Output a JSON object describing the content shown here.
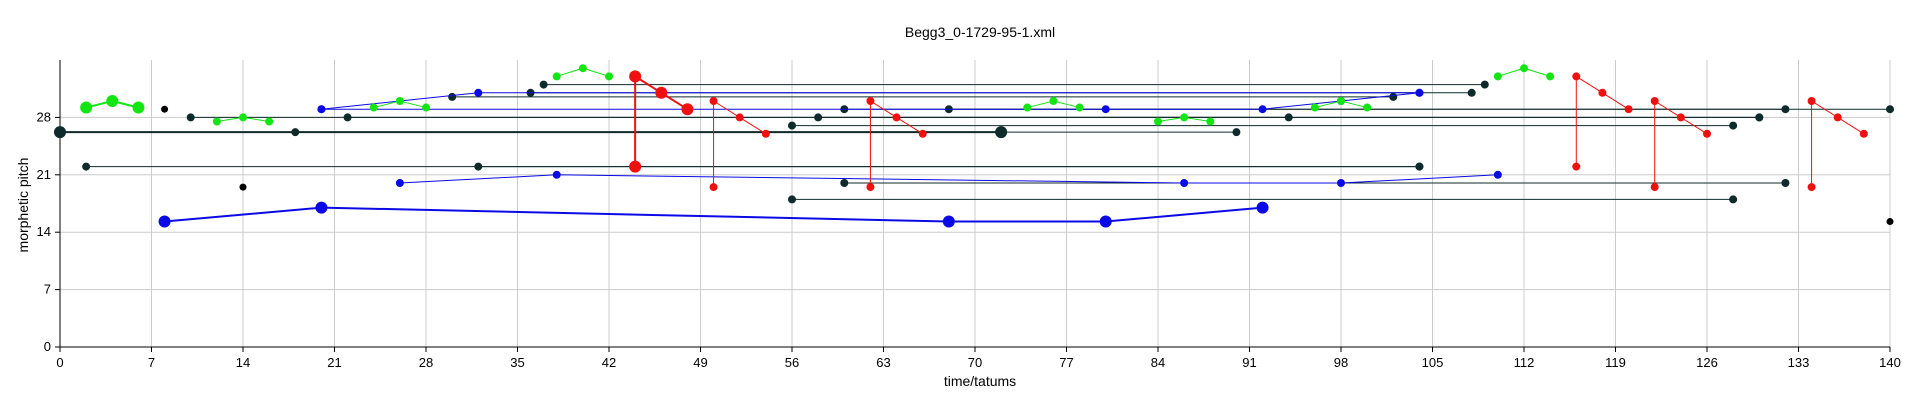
{
  "chart_data": {
    "type": "scatter",
    "title": "Begg3_0-1729-95-1.xml",
    "xlabel": "time/tatums",
    "ylabel": "morphetic pitch",
    "xlim": [
      0,
      140
    ],
    "ylim": [
      0,
      35
    ],
    "xticks": [
      0,
      7,
      14,
      21,
      28,
      35,
      42,
      49,
      56,
      63,
      70,
      77,
      84,
      91,
      98,
      105,
      112,
      119,
      126,
      133,
      140
    ],
    "yticks": [
      0,
      7,
      14,
      21,
      28
    ],
    "grid": true,
    "colors": {
      "dark": "#0e2a2a",
      "black": "#000000",
      "blue": "#0a0ae6",
      "green": "#12e612",
      "red": "#f01010"
    },
    "dark_segments": [
      {
        "x1": 0,
        "y1": 26.2,
        "x2": 72,
        "y2": 26.2,
        "size": "large"
      },
      {
        "x1": 2,
        "y1": 22,
        "x2": 104,
        "y2": 22,
        "size": "small"
      },
      {
        "x1": 10,
        "y1": 28,
        "x2": 130,
        "y2": 28,
        "size": "small"
      },
      {
        "x1": 18,
        "y1": 26.2,
        "x2": 90,
        "y2": 26.2,
        "size": "small"
      },
      {
        "x1": 22,
        "y1": 28,
        "x2": 94,
        "y2": 28,
        "size": "small"
      },
      {
        "x1": 30,
        "y1": 30.5,
        "x2": 102,
        "y2": 30.5,
        "size": "small"
      },
      {
        "x1": 32,
        "y1": 22,
        "x2": 104,
        "y2": 22,
        "size": "small"
      },
      {
        "x1": 36,
        "y1": 31,
        "x2": 108,
        "y2": 31,
        "size": "small"
      },
      {
        "x1": 37,
        "y1": 32,
        "x2": 109,
        "y2": 32,
        "size": "small"
      },
      {
        "x1": 56,
        "y1": 27,
        "x2": 128,
        "y2": 27,
        "size": "small"
      },
      {
        "x1": 58,
        "y1": 28,
        "x2": 130,
        "y2": 28,
        "size": "small"
      },
      {
        "x1": 60,
        "y1": 29,
        "x2": 132,
        "y2": 29,
        "size": "small"
      },
      {
        "x1": 56,
        "y1": 18,
        "x2": 128,
        "y2": 18,
        "size": "small"
      },
      {
        "x1": 60,
        "y1": 20,
        "x2": 132,
        "y2": 20,
        "size": "small"
      },
      {
        "x1": 68,
        "y1": 29,
        "x2": 140,
        "y2": 29,
        "size": "small"
      }
    ],
    "black_points": [
      {
        "x": 8,
        "y": 29
      },
      {
        "x": 14,
        "y": 19.5
      },
      {
        "x": 140,
        "y": 15.3
      }
    ],
    "blue_series": [
      {
        "size": "small",
        "points": [
          [
            20,
            29
          ],
          [
            32,
            31
          ],
          [
            104,
            31
          ]
        ]
      },
      {
        "size": "small",
        "points": [
          [
            20,
            29
          ],
          [
            80,
            29
          ],
          [
            92,
            29
          ],
          [
            98,
            30
          ],
          [
            104,
            31
          ]
        ]
      },
      {
        "size": "small",
        "points": [
          [
            26,
            20
          ],
          [
            38,
            21
          ],
          [
            86,
            20
          ],
          [
            98,
            20
          ],
          [
            110,
            21
          ]
        ]
      },
      {
        "size": "large",
        "points": [
          [
            8,
            15.3
          ],
          [
            20,
            17
          ],
          [
            68,
            15.3
          ],
          [
            80,
            15.3
          ],
          [
            92,
            17
          ]
        ]
      }
    ],
    "green_series": [
      {
        "size": "large",
        "points": [
          [
            2,
            29.2
          ],
          [
            4,
            30
          ],
          [
            6,
            29.2
          ]
        ]
      },
      {
        "size": "small",
        "points": [
          [
            12,
            27.5
          ],
          [
            14,
            28
          ],
          [
            16,
            27.5
          ]
        ]
      },
      {
        "size": "small",
        "points": [
          [
            24,
            29.2
          ],
          [
            26,
            30
          ],
          [
            28,
            29.2
          ]
        ]
      },
      {
        "size": "small",
        "points": [
          [
            38,
            33
          ],
          [
            40,
            34
          ],
          [
            42,
            33
          ]
        ]
      },
      {
        "size": "small",
        "points": [
          [
            74,
            29.2
          ],
          [
            76,
            30
          ],
          [
            78,
            29.2
          ]
        ]
      },
      {
        "size": "small",
        "points": [
          [
            84,
            27.5
          ],
          [
            86,
            28
          ],
          [
            88,
            27.5
          ]
        ]
      },
      {
        "size": "small",
        "points": [
          [
            96,
            29.2
          ],
          [
            98,
            30
          ],
          [
            100,
            29.2
          ]
        ]
      },
      {
        "size": "small",
        "points": [
          [
            110,
            33
          ],
          [
            112,
            34
          ],
          [
            114,
            33
          ]
        ]
      }
    ],
    "red_groups": [
      {
        "size": "large",
        "chord": [
          44,
          22
        ],
        "points": [
          [
            44,
            33
          ],
          [
            46,
            31
          ],
          [
            48,
            29
          ]
        ]
      },
      {
        "size": "small",
        "chord": [
          50,
          19.5
        ],
        "points": [
          [
            50,
            30
          ],
          [
            52,
            28
          ],
          [
            54,
            26
          ]
        ]
      },
      {
        "size": "small",
        "chord": [
          62,
          19.5
        ],
        "points": [
          [
            62,
            30
          ],
          [
            64,
            28
          ],
          [
            66,
            26
          ]
        ]
      },
      {
        "size": "small",
        "chord": [
          116,
          22
        ],
        "points": [
          [
            116,
            33
          ],
          [
            118,
            31
          ],
          [
            120,
            29
          ]
        ]
      },
      {
        "size": "small",
        "chord": [
          122,
          19.5
        ],
        "points": [
          [
            122,
            30
          ],
          [
            124,
            28
          ],
          [
            126,
            26
          ]
        ]
      },
      {
        "size": "small",
        "chord": [
          134,
          19.5
        ],
        "points": [
          [
            134,
            30
          ],
          [
            136,
            28
          ],
          [
            138,
            26
          ]
        ]
      }
    ]
  }
}
